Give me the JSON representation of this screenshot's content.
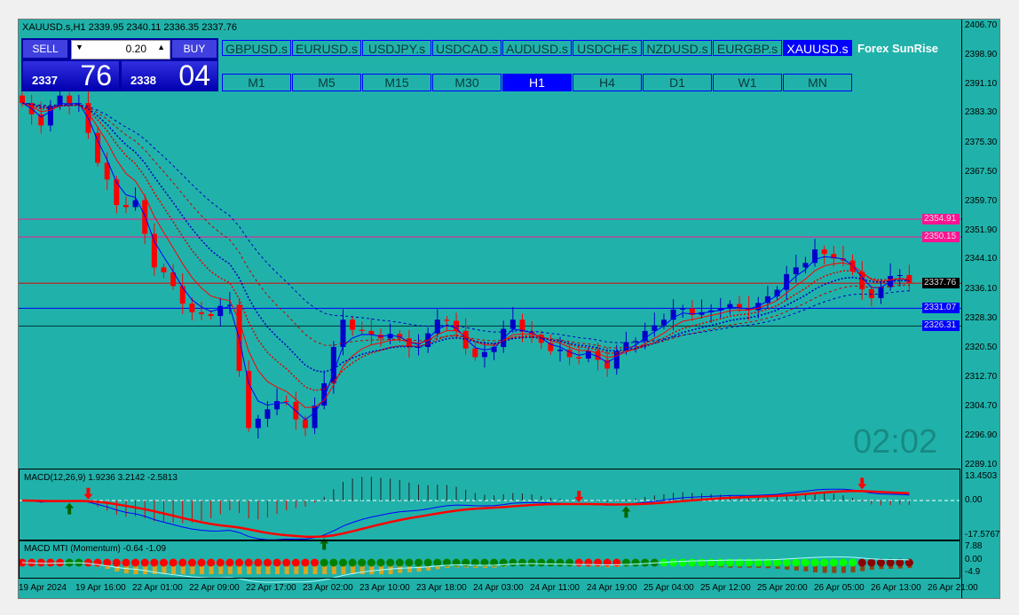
{
  "title": "XAUUSD.s,H1  2339.95 2340.11 2336.35 2337.76",
  "trade": {
    "sell": "SELL",
    "buy": "BUY",
    "lot": "0.20",
    "bid_main": "2337",
    "bid_big": "76",
    "ask_main": "2338",
    "ask_big": "04"
  },
  "symbols": [
    "GBPUSD.s",
    "EURUSD.s",
    "USDJPY.s",
    "USDCAD.s",
    "AUDUSD.s",
    "USDCHF.s",
    "NZDUSD.s",
    "EURGBP.s",
    "XAUUSD.s"
  ],
  "active_symbol": "XAUUSD.s",
  "timeframes": [
    "M1",
    "M5",
    "M15",
    "M30",
    "H1",
    "H4",
    "D1",
    "W1",
    "MN"
  ],
  "active_timeframe": "H1",
  "brand": "Forex SunRise",
  "clock": "02:02",
  "price_axis": [
    "2406.70",
    "2398.90",
    "2391.10",
    "2383.30",
    "2375.30",
    "2367.50",
    "2359.70",
    "2351.90",
    "2344.10",
    "2336.10",
    "2328.30",
    "2320.50",
    "2312.70",
    "2304.70",
    "2296.90",
    "2289.10"
  ],
  "levels": [
    {
      "price": "2354.91",
      "color": "#ff1493"
    },
    {
      "price": "2350.15",
      "color": "#ff1493"
    },
    {
      "price": "2337.76",
      "color": "#e00000",
      "tag": "#000000"
    },
    {
      "price": "2331.07",
      "color": "#0000ff"
    },
    {
      "price": "2326.31",
      "color": "#0000ff",
      "line": "#003333"
    }
  ],
  "macd": {
    "label": "MACD(12,26,9) 1.9236 3.2142 -2.5813",
    "axis": [
      "13.4503",
      "0.00",
      "-17.5767"
    ]
  },
  "mti": {
    "label": "MACD MTI (Momentum) -0.64 -1.09",
    "axis": [
      "7.88",
      "0.00",
      "-4.9"
    ]
  },
  "time_axis": [
    "19 Apr 2024",
    "19 Apr 16:00",
    "22 Apr 01:00",
    "22 Apr 09:00",
    "22 Apr 17:00",
    "23 Apr 02:00",
    "23 Apr 10:00",
    "23 Apr 18:00",
    "24 Apr 03:00",
    "24 Apr 11:00",
    "24 Apr 19:00",
    "25 Apr 04:00",
    "25 Apr 12:00",
    "25 Apr 20:00",
    "26 Apr 05:00",
    "26 Apr 13:00",
    "26 Apr 21:00"
  ],
  "chart_data": {
    "type": "candlestick",
    "symbol": "XAUUSD.s",
    "timeframe": "H1",
    "ylim": [
      2289.1,
      2406.7
    ],
    "closes": [
      2386,
      2380,
      2388,
      2386,
      2370,
      2358.7,
      2360,
      2342,
      2337,
      2330,
      2329,
      2332,
      2299,
      2304,
      2306,
      2299,
      2311,
      2328,
      2325,
      2323,
      2323,
      2320.7,
      2328,
      2325,
      2318,
      2320.7,
      2328,
      2324,
      2319.6,
      2318,
      2319.6,
      2314.9,
      2322,
      2325,
      2328,
      2331,
      2330,
      2331,
      2331,
      2332.5,
      2336,
      2342,
      2346.8,
      2344.4,
      2340.9,
      2333.8,
      2339.7,
      2337.8
    ],
    "colors": {
      "bull": "#0000c8",
      "bear": "#ff0000",
      "background": "#20b2aa"
    }
  }
}
